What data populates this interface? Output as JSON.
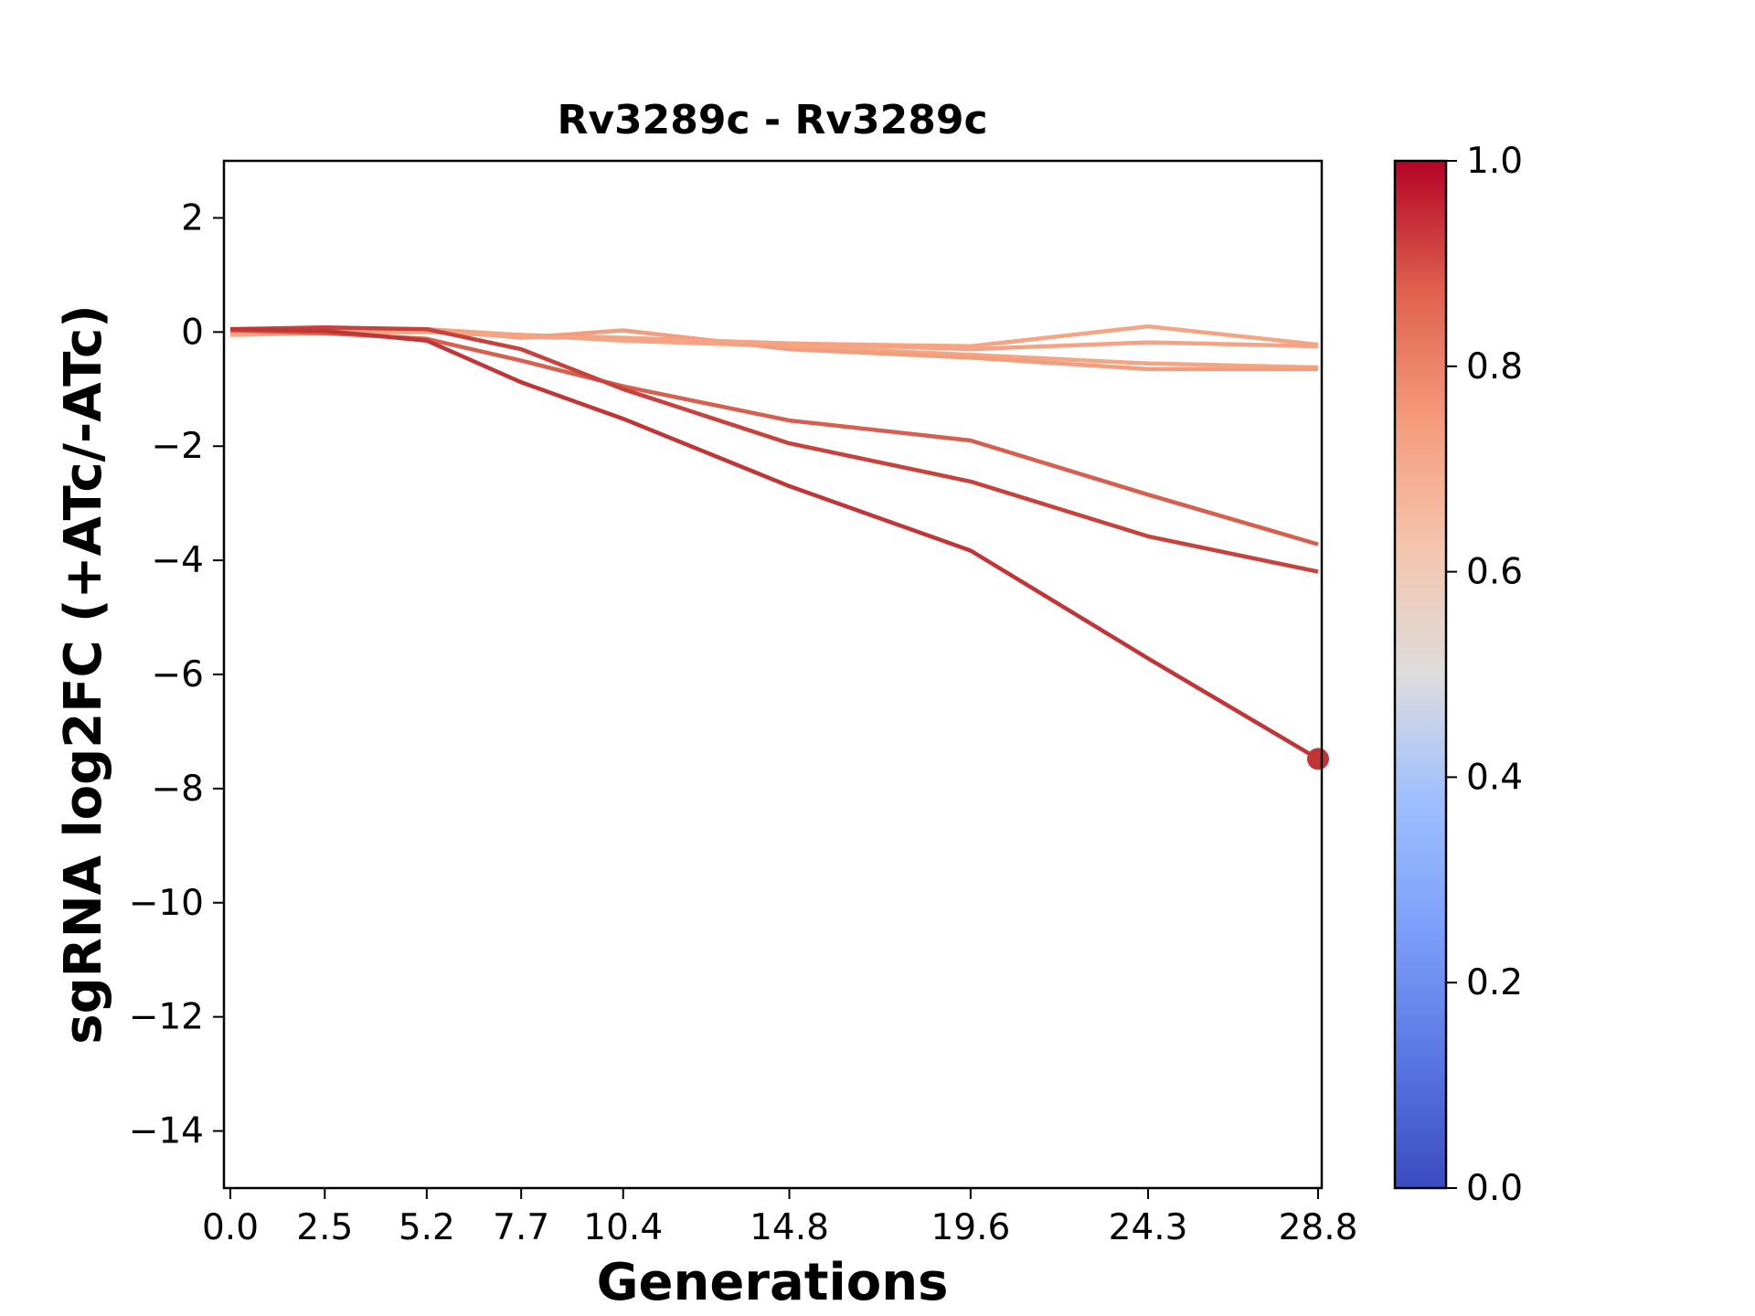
{
  "chart_data": {
    "type": "line",
    "title": "Rv3289c - Rv3289c",
    "xlabel": "Generations",
    "ylabel": "sgRNA log2FC (+ATc/-ATc)",
    "x": [
      0.0,
      2.5,
      5.2,
      7.7,
      10.4,
      14.8,
      19.6,
      24.3,
      28.8
    ],
    "x_tick_labels": [
      "0.0",
      "2.5",
      "5.2",
      "7.7",
      "10.4",
      "14.8",
      "19.6",
      "24.3",
      "28.8"
    ],
    "ylim": [
      -15,
      3
    ],
    "y_ticks": [
      2,
      0,
      -2,
      -4,
      -6,
      -8,
      -10,
      -12,
      -14
    ],
    "y_tick_labels": [
      "2",
      "0",
      "−2",
      "−4",
      "−6",
      "−8",
      "−10",
      "−12",
      "−14"
    ],
    "series": [
      {
        "color": "#f4a582",
        "values": [
          -0.02,
          0.05,
          0.05,
          -0.05,
          -0.1,
          -0.2,
          -0.25,
          0.1,
          -0.22
        ]
      },
      {
        "color": "#f4a582",
        "values": [
          -0.05,
          -0.02,
          0.0,
          -0.05,
          -0.15,
          -0.25,
          -0.4,
          -0.55,
          -0.62
        ]
      },
      {
        "color": "#f39d7f",
        "values": [
          0.0,
          0.0,
          0.05,
          -0.1,
          0.03,
          -0.3,
          -0.45,
          -0.65,
          -0.65
        ]
      },
      {
        "color": "#f6a385",
        "values": [
          0.02,
          0.0,
          0.0,
          -0.08,
          -0.12,
          -0.2,
          -0.3,
          -0.18,
          -0.25
        ]
      },
      {
        "color": "#d6604d",
        "values": [
          0.03,
          -0.02,
          -0.12,
          -0.5,
          -0.95,
          -1.55,
          -1.9,
          -2.85,
          -3.72
        ]
      },
      {
        "color": "#c8423c",
        "values": [
          0.05,
          0.08,
          0.05,
          -0.3,
          -1.0,
          -1.95,
          -2.62,
          -3.58,
          -4.2
        ]
      },
      {
        "color": "#c23537",
        "values": [
          0.05,
          0.02,
          -0.15,
          -0.88,
          -1.52,
          -2.7,
          -3.83,
          -5.72,
          -7.48
        ]
      }
    ],
    "end_marker": {
      "x": 28.8,
      "y": -7.48,
      "color": "#c23537"
    },
    "colorbar": {
      "colormap": "coolwarm",
      "range": [
        0.0,
        1.0
      ],
      "tick_labels": [
        "0.0",
        "0.2",
        "0.4",
        "0.6",
        "0.8",
        "1.0"
      ],
      "tick_values": [
        0.0,
        0.2,
        0.4,
        0.6,
        0.8,
        1.0
      ]
    },
    "grid": false,
    "legend": "none"
  }
}
